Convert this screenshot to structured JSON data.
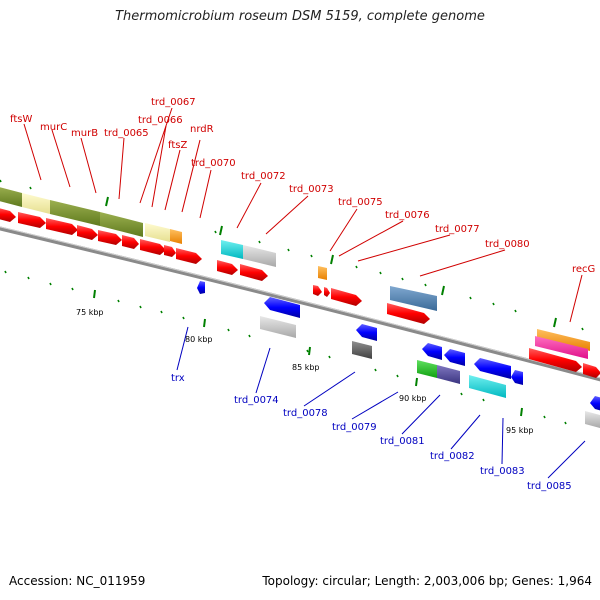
{
  "title": "Thermomicrobium roseum DSM 5159, complete genome",
  "footer": {
    "accession": "Accession: NC_011959",
    "summary": "Topology: circular; Length: 2,003,006 bp; Genes: 1,964"
  },
  "colors": {
    "forward_label": "#d00000",
    "reverse_label": "#0000c0",
    "forward_cds": "#ff0000",
    "reverse_cds": "#0000ff",
    "backbone": "#808080",
    "tick": "#008000"
  },
  "kbp_labels": [
    "75 kbp",
    "80 kbp",
    "85 kbp",
    "90 kbp",
    "95 kbp"
  ],
  "forward_labels": [
    "ftsW",
    "murC",
    "murB",
    "trd_0065",
    "trd_0067",
    "trd_0066",
    "ftsZ",
    "nrdR",
    "trd_0070",
    "trd_0072",
    "trd_0073",
    "trd_0075",
    "trd_0076",
    "trd_0077",
    "trd_0080",
    "recG"
  ],
  "reverse_labels": [
    "trx",
    "trd_0074",
    "trd_0078",
    "trd_0079",
    "trd_0081",
    "trd_0082",
    "trd_0083",
    "trd_0085"
  ]
}
